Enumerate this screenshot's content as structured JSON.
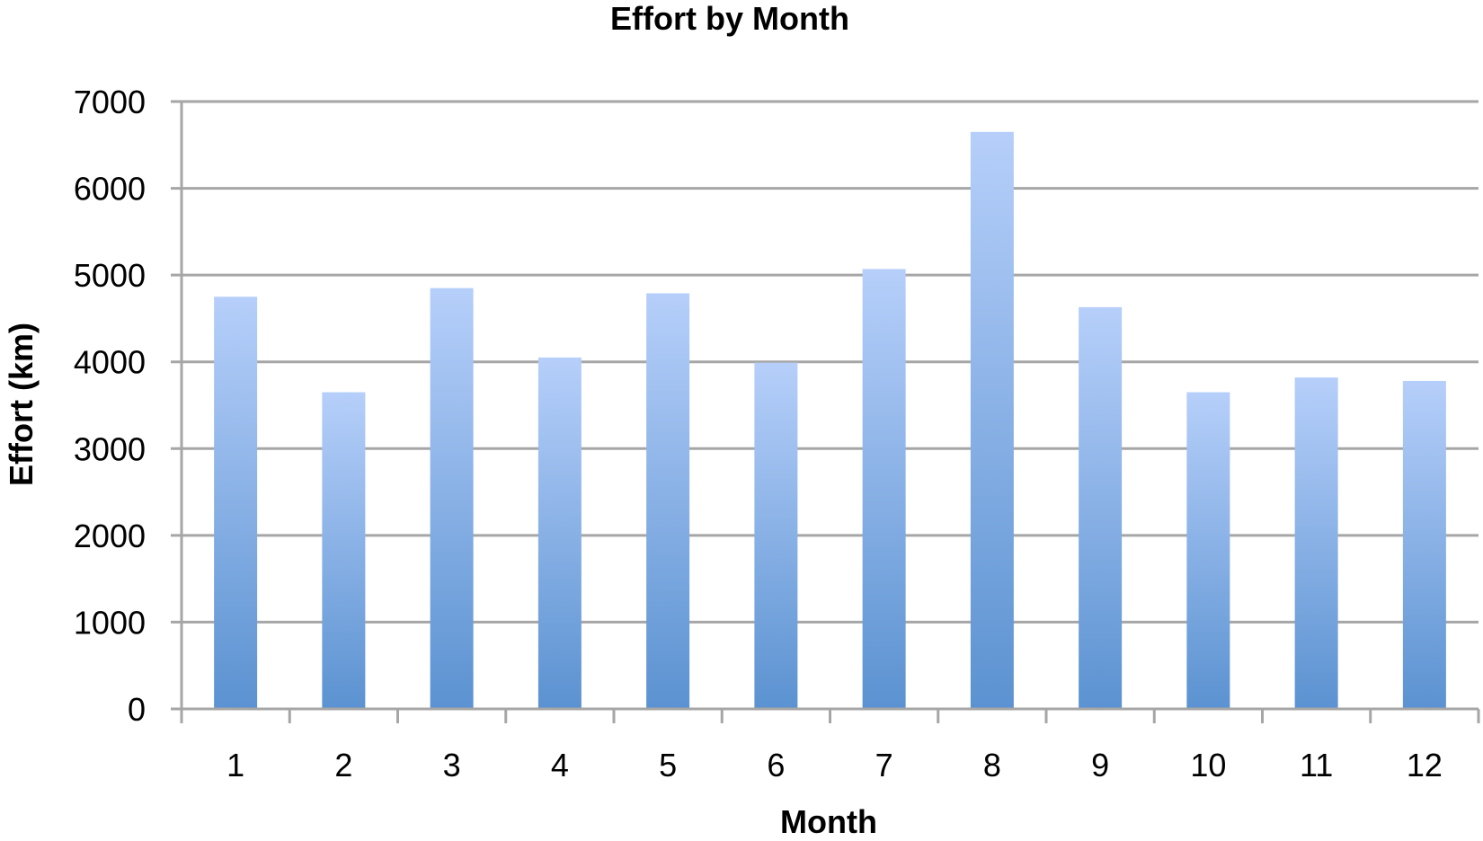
{
  "chart_data": {
    "type": "bar",
    "title": "Effort by Month",
    "xlabel": "Month",
    "ylabel": "Effort (km)",
    "categories": [
      "1",
      "2",
      "3",
      "4",
      "5",
      "6",
      "7",
      "8",
      "9",
      "10",
      "11",
      "12"
    ],
    "values": [
      4750,
      3650,
      4850,
      4050,
      4790,
      3990,
      5070,
      6650,
      4630,
      3650,
      3820,
      3780
    ],
    "ylim": [
      0,
      7000
    ],
    "yticks": [
      "0",
      "1000",
      "2000",
      "3000",
      "4000",
      "5000",
      "6000",
      "7000"
    ],
    "grid": true,
    "legend": "none",
    "colors": {
      "bar_top": "#b6cffa",
      "bar_bottom": "#5b92d1",
      "grid": "#a6a6a6"
    }
  }
}
